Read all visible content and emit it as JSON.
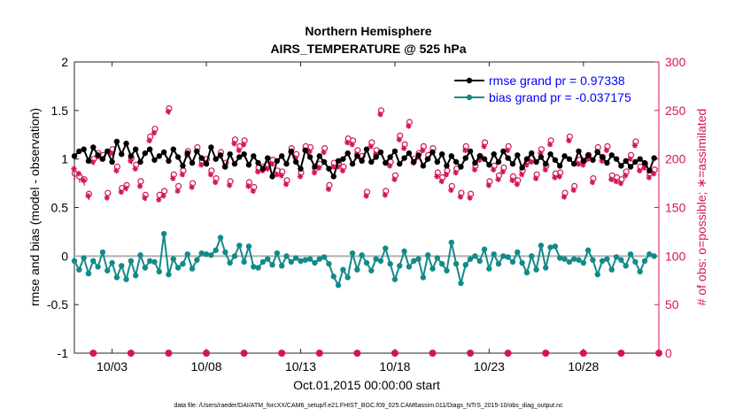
{
  "chart_data": {
    "type": "line",
    "title": "Northern Hemisphere",
    "subtitle": "AIRS_TEMPERATURE @ 525 hPa",
    "xlabel": "Oct.01,2015 00:00:00 start",
    "ylabel": "rmse and bias (model - observation)",
    "y2label": "# of obs: o=possible; ∗=assimilated",
    "footnote": "data file: /Users/raeder/DAI/ATM_forcXX/CAM6_setup/f.e21.FHIST_BGC.f09_025.CAM6assim.011/Diags_NTrS_2015-10/obs_diag_output.nc",
    "x_tick_labels": [
      "10/03",
      "10/08",
      "10/13",
      "10/18",
      "10/23",
      "10/28"
    ],
    "x_tick_days": [
      3,
      8,
      13,
      18,
      23,
      28
    ],
    "xlim": [
      1,
      32
    ],
    "ylim": [
      -1,
      2
    ],
    "y_ticks": [
      "-1",
      "-0.5",
      "0",
      "0.5",
      "1",
      "1.5",
      "2"
    ],
    "y2lim": [
      0,
      300
    ],
    "y2_ticks": [
      "0",
      "50",
      "100",
      "150",
      "200",
      "250",
      "300"
    ],
    "n_times": 124,
    "step_days": 0.25,
    "legend_position": "top-right",
    "series": [
      {
        "name": "rmse grand pr = 0.97338",
        "axis": "left",
        "color": "#000000",
        "marker": "dot",
        "values": [
          1.03,
          1.08,
          1.1,
          0.98,
          1.12,
          1.04,
          1.0,
          1.08,
          0.97,
          1.18,
          1.05,
          1.16,
          1.03,
          1.1,
          0.97,
          1.06,
          1.1,
          0.99,
          1.03,
          1.07,
          0.98,
          1.1,
          1.02,
          0.93,
          1.06,
          0.96,
          1.08,
          1.01,
          0.95,
          1.12,
          1.0,
          1.04,
          0.92,
          1.05,
          0.95,
          1.02,
          1.05,
          0.94,
          1.03,
          0.96,
          0.9,
          1.01,
          0.82,
          0.98,
          1.03,
          0.95,
          1.08,
          0.97,
          0.9,
          1.09,
          1.02,
          0.92,
          1.03,
          0.97,
          0.9,
          0.82,
          0.98,
          1.0,
          1.06,
          0.95,
          1.03,
          0.98,
          1.1,
          0.97,
          1.02,
          1.07,
          0.96,
          1.02,
          1.08,
          0.95,
          1.01,
          1.06,
          0.97,
          1.04,
          0.93,
          1.0,
          1.07,
          0.97,
          1.05,
          0.93,
          1.03,
          0.97,
          0.92,
          1.01,
          1.08,
          0.96,
          1.03,
          1.0,
          0.94,
          1.05,
          0.97,
          1.08,
          1.01,
          0.95,
          1.04,
          0.91,
          1.0,
          1.06,
          0.97,
          1.02,
          0.95,
          1.05,
          0.99,
          0.93,
          1.03,
          1.0,
          0.95,
          1.08,
          0.98,
          1.04,
          0.99,
          1.07,
          1.02,
          0.96,
          1.04,
          1.0,
          0.93,
          0.98,
          0.92,
          0.97,
          1.0,
          0.96,
          0.88,
          1.01
        ]
      },
      {
        "name": "bias grand pr = -0.037175",
        "axis": "left",
        "color": "#138a8a",
        "marker": "dot",
        "values": [
          -0.05,
          -0.14,
          -0.02,
          -0.18,
          -0.05,
          -0.11,
          0.04,
          -0.15,
          -0.07,
          -0.22,
          -0.1,
          -0.24,
          -0.05,
          -0.2,
          0.01,
          -0.12,
          -0.05,
          -0.06,
          -0.16,
          0.23,
          -0.19,
          -0.03,
          -0.12,
          -0.08,
          0.02,
          -0.13,
          -0.04,
          0.03,
          0.02,
          0.01,
          0.06,
          0.19,
          0.04,
          -0.07,
          0.0,
          0.11,
          -0.06,
          0.1,
          -0.11,
          -0.12,
          -0.06,
          -0.03,
          -0.09,
          0.03,
          -0.1,
          0.0,
          -0.06,
          -0.02,
          -0.05,
          -0.04,
          -0.03,
          -0.07,
          -0.03,
          -0.01,
          -0.08,
          -0.21,
          -0.3,
          -0.14,
          -0.22,
          0.03,
          -0.14,
          0.01,
          -0.07,
          -0.15,
          -0.03,
          -0.05,
          0.08,
          -0.08,
          -0.24,
          -0.1,
          0.05,
          -0.11,
          -0.05,
          -0.03,
          -0.22,
          0.01,
          -0.13,
          -0.02,
          -0.08,
          -0.15,
          0.14,
          -0.08,
          -0.28,
          -0.09,
          -0.03,
          0.0,
          -0.05,
          0.07,
          -0.13,
          0.02,
          -0.08,
          0.0,
          -0.01,
          -0.06,
          0.04,
          -0.07,
          -0.17,
          0.0,
          -0.14,
          0.11,
          -0.12,
          0.09,
          0.1,
          -0.02,
          -0.03,
          -0.06,
          -0.03,
          -0.04,
          -0.07,
          0.06,
          -0.04,
          -0.19,
          -0.05,
          -0.03,
          -0.14,
          -0.01,
          -0.04,
          -0.1,
          0.02,
          -0.06,
          -0.16,
          -0.05,
          0.02,
          0.0
        ]
      },
      {
        "name": "# of obs possible",
        "axis": "right",
        "color": "#d4145a",
        "marker": "circle",
        "values": [
          185,
          182,
          179,
          164,
          200,
          206,
          204,
          165,
          210,
          192,
          170,
          173,
          201,
          194,
          177,
          163,
          223,
          231,
          163,
          167,
          252,
          184,
          172,
          188,
          208,
          175,
          212,
          198,
          200,
          188,
          180,
          207,
          196,
          177,
          220,
          213,
          219,
          176,
          171,
          191,
          192,
          194,
          199,
          188,
          187,
          178,
          211,
          205,
          186,
          213,
          212,
          190,
          195,
          211,
          173,
          196,
          196,
          192,
          221,
          219,
          209,
          203,
          166,
          217,
          209,
          250,
          167,
          197,
          183,
          224,
          215,
          238,
          200,
          206,
          213,
          204,
          211,
          186,
          181,
          188,
          172,
          190,
          165,
          213,
          164,
          193,
          203,
          217,
          177,
          193,
          183,
          191,
          213,
          182,
          178,
          188,
          198,
          201,
          184,
          210,
          193,
          219,
          185,
          186,
          165,
          223,
          172,
          199,
          198,
          204,
          180,
          212,
          202,
          213,
          183,
          181,
          179,
          187,
          204,
          218,
          192,
          195,
          185,
          189
        ]
      },
      {
        "name": "# of obs assimilated",
        "axis": "right",
        "color": "#d4145a",
        "marker": "star",
        "values": [
          190,
          185,
          178,
          162,
          197,
          203,
          200,
          160,
          206,
          188,
          166,
          170,
          198,
          190,
          172,
          160,
          219,
          227,
          158,
          162,
          249,
          180,
          167,
          184,
          204,
          171,
          208,
          194,
          196,
          184,
          176,
          203,
          192,
          173,
          216,
          209,
          215,
          172,
          167,
          187,
          188,
          190,
          195,
          184,
          183,
          174,
          207,
          201,
          182,
          209,
          208,
          186,
          191,
          207,
          169,
          192,
          192,
          188,
          217,
          215,
          205,
          199,
          162,
          213,
          205,
          246,
          163,
          193,
          179,
          220,
          211,
          234,
          196,
          202,
          209,
          200,
          207,
          182,
          177,
          184,
          168,
          186,
          161,
          209,
          160,
          189,
          199,
          213,
          173,
          189,
          179,
          187,
          209,
          178,
          174,
          184,
          194,
          197,
          180,
          206,
          189,
          215,
          181,
          182,
          161,
          219,
          168,
          195,
          194,
          200,
          176,
          208,
          198,
          209,
          179,
          177,
          175,
          183,
          200,
          214,
          188,
          191,
          181,
          185
        ]
      }
    ]
  }
}
